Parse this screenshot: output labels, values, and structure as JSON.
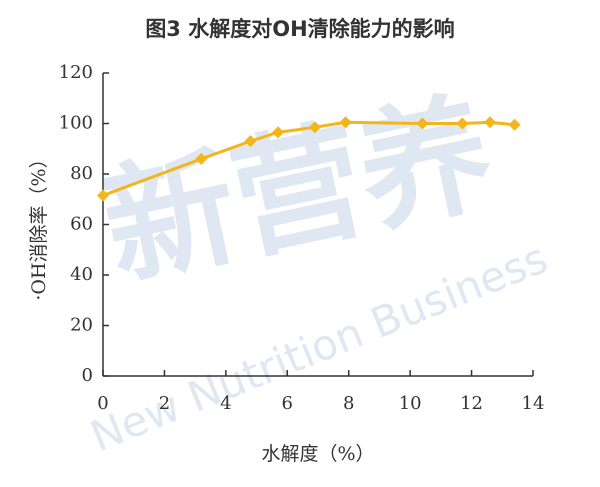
{
  "chart_data": {
    "type": "line",
    "title": "图3 水解度对OH清除能力的影响",
    "x_label": "水解度（%）",
    "y_label": "·OH消除率（%）",
    "watermark": [
      "新营养",
      "New Nutrition Business"
    ],
    "x": [
      0,
      3.2,
      4.8,
      5.7,
      6.9,
      7.9,
      10.4,
      11.7,
      12.6,
      13.4
    ],
    "values": [
      71.5,
      86,
      93,
      96.5,
      98.5,
      100.5,
      100,
      100,
      100.5,
      99.5
    ],
    "color": "#f2b51c",
    "xlim": [
      0,
      14
    ],
    "xticks": [
      0,
      2,
      4,
      6,
      8,
      10,
      12,
      14
    ],
    "ylim": [
      0,
      120
    ],
    "yticks": [
      0,
      20,
      40,
      60,
      80,
      100,
      120
    ]
  }
}
